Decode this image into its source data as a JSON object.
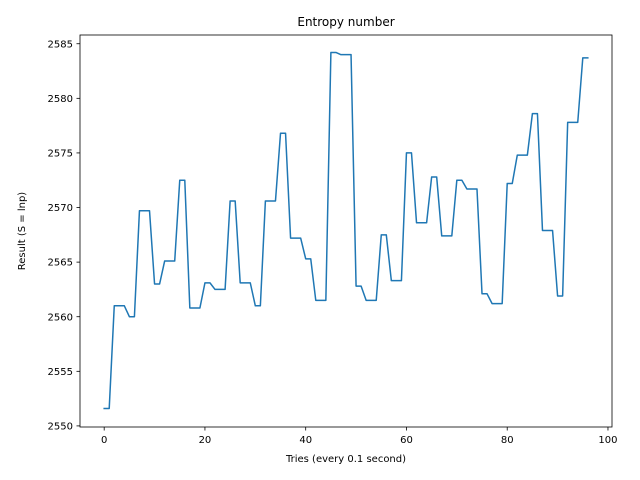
{
  "chart_data": {
    "type": "line",
    "title": "Entropy number",
    "xlabel": "Tries (every 0.1 second)",
    "ylabel": "Result (S = lnp)",
    "xlim": [
      -4.8,
      100.8
    ],
    "ylim": [
      2549.9,
      2585.8
    ],
    "xticks": [
      0,
      20,
      40,
      60,
      80,
      100
    ],
    "yticks": [
      2550,
      2555,
      2560,
      2565,
      2570,
      2575,
      2580,
      2585
    ],
    "grid": false,
    "legend": "none",
    "series": [
      {
        "color": "#1f77b4",
        "x": [
          0,
          1,
          2,
          3,
          4,
          5,
          6,
          7,
          8,
          9,
          10,
          11,
          12,
          13,
          14,
          15,
          16,
          17,
          18,
          19,
          20,
          21,
          22,
          23,
          24,
          25,
          26,
          27,
          28,
          29,
          30,
          31,
          32,
          33,
          34,
          35,
          36,
          37,
          38,
          39,
          40,
          41,
          42,
          43,
          44,
          45,
          46,
          47,
          48,
          49,
          50,
          51,
          52,
          53,
          54,
          55,
          56,
          57,
          58,
          59,
          60,
          61,
          62,
          63,
          64,
          65,
          66,
          67,
          68,
          69,
          70,
          71,
          72,
          73,
          74,
          75,
          76,
          77,
          78,
          79,
          80,
          81,
          82,
          83,
          84,
          85,
          86,
          87,
          88,
          89,
          90,
          91,
          92,
          93,
          94,
          95,
          96
        ],
        "y": [
          2551.6,
          2551.6,
          2561.0,
          2561.0,
          2561.0,
          2560.0,
          2560.0,
          2569.7,
          2569.7,
          2569.7,
          2563.0,
          2563.0,
          2565.1,
          2565.1,
          2565.1,
          2572.5,
          2572.5,
          2560.8,
          2560.8,
          2560.8,
          2563.1,
          2563.1,
          2562.5,
          2562.5,
          2562.5,
          2570.6,
          2570.6,
          2563.1,
          2563.1,
          2563.1,
          2561.0,
          2561.0,
          2570.6,
          2570.6,
          2570.6,
          2576.8,
          2576.8,
          2567.2,
          2567.2,
          2567.2,
          2565.3,
          2565.3,
          2561.5,
          2561.5,
          2561.5,
          2584.2,
          2584.2,
          2584.0,
          2584.0,
          2584.0,
          2562.8,
          2562.8,
          2561.5,
          2561.5,
          2561.5,
          2567.5,
          2567.5,
          2563.3,
          2563.3,
          2563.3,
          2575.0,
          2575.0,
          2568.6,
          2568.6,
          2568.6,
          2572.8,
          2572.8,
          2567.4,
          2567.4,
          2567.4,
          2572.5,
          2572.5,
          2571.7,
          2571.7,
          2571.7,
          2562.1,
          2562.1,
          2561.2,
          2561.2,
          2561.2,
          2572.2,
          2572.2,
          2574.8,
          2574.8,
          2574.8,
          2578.6,
          2578.6,
          2567.9,
          2567.9,
          2567.9,
          2561.9,
          2561.9,
          2577.8,
          2577.8,
          2577.8,
          2583.7,
          2583.7
        ]
      }
    ]
  }
}
